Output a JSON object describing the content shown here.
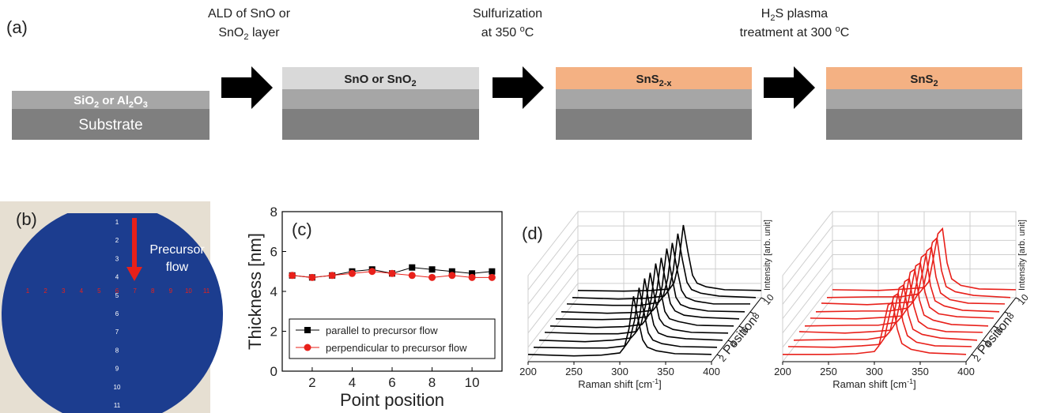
{
  "panel_a": {
    "label": "(a)",
    "steps": [
      {
        "line1": "ALD of SnO or",
        "line2": [
          "SnO",
          "2",
          " layer"
        ]
      },
      {
        "line1": "Sulfurization",
        "line2": [
          "at 350 ",
          "o",
          "C"
        ]
      },
      {
        "line1": [
          "H",
          "2",
          "S plasma"
        ],
        "line2": [
          "treatment at 300 ",
          "o",
          "C"
        ]
      }
    ],
    "insulator": [
      "SiO",
      "2",
      " or Al",
      "2",
      "O",
      "3"
    ],
    "substrate": "Substrate",
    "films": [
      [
        "SnO or SnO",
        "2"
      ],
      [
        "SnS",
        "2-x"
      ],
      [
        "SnS",
        "2"
      ]
    ]
  },
  "panel_b": {
    "label": "(b)",
    "annotation": [
      "Precursor",
      "flow"
    ],
    "vertical_labels": [
      "1",
      "2",
      "3",
      "4",
      "5",
      "6",
      "7",
      "8",
      "9",
      "10",
      "11"
    ],
    "horizontal_labels": [
      "1",
      "2",
      "3",
      "4",
      "5",
      "6",
      "7",
      "8",
      "9",
      "10",
      "11"
    ]
  },
  "chart_data": [
    {
      "type": "line",
      "panel_label": "(c)",
      "xlabel": "Point position",
      "ylabel": "Thickness [nm]",
      "x": [
        1,
        2,
        3,
        4,
        5,
        6,
        7,
        8,
        9,
        10,
        11
      ],
      "series": [
        {
          "name": "parallel to precursor flow",
          "color": "#000000",
          "marker": "square",
          "values": [
            4.8,
            4.7,
            4.8,
            5.0,
            5.1,
            4.9,
            5.2,
            5.1,
            5.0,
            4.9,
            5.0
          ]
        },
        {
          "name": "perpendicular to precursor flow",
          "color": "#e8201a",
          "marker": "circle",
          "values": [
            4.8,
            4.7,
            4.8,
            4.9,
            5.0,
            4.9,
            4.8,
            4.7,
            4.8,
            4.7,
            4.7
          ]
        }
      ],
      "xlim": [
        0.5,
        11.5
      ],
      "xticks": [
        2,
        4,
        6,
        8,
        10
      ],
      "ylim": [
        0,
        8
      ],
      "yticks": [
        0,
        2,
        4,
        6,
        8
      ],
      "legend": "lower center"
    },
    {
      "type": "waterfall",
      "panel_label": "(d)",
      "color": "#000000",
      "xlabel": [
        "Raman shift [cm",
        "-1",
        "]"
      ],
      "ylabel": "Intensity [arb. unit]",
      "zlabel": "Position",
      "x": [
        200,
        250,
        280,
        300,
        305,
        310,
        315,
        320,
        325,
        330,
        340,
        360,
        400
      ],
      "z": [
        1,
        2,
        3,
        4,
        5,
        6,
        7,
        8,
        9,
        10
      ],
      "series": [
        {
          "values": [
            0.1,
            0.08,
            0.09,
            0.12,
            0.2,
            0.45,
            0.9,
            0.58,
            0.3,
            0.2,
            0.15,
            0.11,
            0.1
          ]
        },
        {
          "values": [
            0.1,
            0.09,
            0.09,
            0.12,
            0.21,
            0.47,
            0.92,
            0.6,
            0.3,
            0.2,
            0.15,
            0.11,
            0.1
          ]
        },
        {
          "values": [
            0.1,
            0.08,
            0.1,
            0.13,
            0.2,
            0.46,
            0.95,
            0.6,
            0.31,
            0.2,
            0.15,
            0.12,
            0.1
          ]
        },
        {
          "values": [
            0.11,
            0.09,
            0.09,
            0.12,
            0.22,
            0.48,
            0.93,
            0.59,
            0.3,
            0.21,
            0.15,
            0.11,
            0.1
          ]
        },
        {
          "values": [
            0.1,
            0.08,
            0.09,
            0.12,
            0.2,
            0.46,
            0.96,
            0.61,
            0.3,
            0.2,
            0.16,
            0.11,
            0.1
          ]
        },
        {
          "values": [
            0.1,
            0.09,
            0.1,
            0.13,
            0.21,
            0.47,
            0.94,
            0.6,
            0.31,
            0.21,
            0.15,
            0.12,
            0.1
          ]
        },
        {
          "values": [
            0.1,
            0.08,
            0.09,
            0.12,
            0.2,
            0.45,
            0.97,
            0.62,
            0.3,
            0.2,
            0.15,
            0.11,
            0.1
          ]
        },
        {
          "values": [
            0.11,
            0.09,
            0.09,
            0.13,
            0.21,
            0.46,
            0.95,
            0.6,
            0.3,
            0.2,
            0.15,
            0.11,
            0.11
          ]
        },
        {
          "values": [
            0.1,
            0.08,
            0.09,
            0.12,
            0.2,
            0.47,
            0.98,
            0.62,
            0.31,
            0.21,
            0.16,
            0.12,
            0.1
          ]
        },
        {
          "values": [
            0.1,
            0.09,
            0.1,
            0.12,
            0.21,
            0.48,
            1.0,
            0.63,
            0.31,
            0.2,
            0.15,
            0.11,
            0.1
          ]
        }
      ],
      "xlim": [
        200,
        400
      ],
      "xticks": [
        200,
        250,
        300,
        350,
        400
      ],
      "ylim": [
        0,
        1
      ],
      "zlim": [
        1,
        10
      ],
      "zticks": [
        2,
        4,
        6,
        8,
        10
      ]
    },
    {
      "type": "waterfall",
      "color": "#e8201a",
      "xlabel": [
        "Raman shift [cm",
        "-1",
        "]"
      ],
      "ylabel": "Intensity [arb. unit]",
      "zlabel": "Position",
      "x": [
        200,
        250,
        280,
        300,
        305,
        310,
        315,
        320,
        325,
        330,
        340,
        360,
        400
      ],
      "z": [
        1,
        2,
        3,
        4,
        5,
        6,
        7,
        8,
        9,
        10
      ],
      "series": [
        {
          "values": [
            0.1,
            0.1,
            0.11,
            0.14,
            0.22,
            0.5,
            0.78,
            0.82,
            0.45,
            0.25,
            0.17,
            0.12,
            0.1
          ]
        },
        {
          "values": [
            0.11,
            0.1,
            0.12,
            0.14,
            0.23,
            0.52,
            0.8,
            0.84,
            0.46,
            0.26,
            0.17,
            0.12,
            0.11
          ]
        },
        {
          "values": [
            0.1,
            0.11,
            0.11,
            0.15,
            0.22,
            0.5,
            0.82,
            0.86,
            0.45,
            0.25,
            0.18,
            0.13,
            0.1
          ]
        },
        {
          "values": [
            0.12,
            0.1,
            0.12,
            0.14,
            0.24,
            0.53,
            0.81,
            0.85,
            0.47,
            0.26,
            0.17,
            0.12,
            0.11
          ]
        },
        {
          "values": [
            0.1,
            0.11,
            0.11,
            0.15,
            0.22,
            0.51,
            0.84,
            0.88,
            0.46,
            0.25,
            0.18,
            0.12,
            0.1
          ]
        },
        {
          "values": [
            0.11,
            0.1,
            0.12,
            0.14,
            0.23,
            0.52,
            0.83,
            0.87,
            0.47,
            0.26,
            0.17,
            0.13,
            0.11
          ]
        },
        {
          "values": [
            0.1,
            0.11,
            0.11,
            0.15,
            0.22,
            0.5,
            0.85,
            0.9,
            0.46,
            0.25,
            0.18,
            0.12,
            0.1
          ]
        },
        {
          "values": [
            0.12,
            0.1,
            0.12,
            0.14,
            0.24,
            0.53,
            0.84,
            0.89,
            0.48,
            0.26,
            0.17,
            0.12,
            0.11
          ]
        },
        {
          "values": [
            0.1,
            0.11,
            0.11,
            0.15,
            0.23,
            0.52,
            0.86,
            0.92,
            0.47,
            0.25,
            0.18,
            0.13,
            0.1
          ]
        },
        {
          "values": [
            0.11,
            0.1,
            0.12,
            0.14,
            0.22,
            0.54,
            0.88,
            0.95,
            0.48,
            0.26,
            0.17,
            0.12,
            0.11
          ]
        }
      ],
      "xlim": [
        200,
        400
      ],
      "xticks": [
        200,
        250,
        300,
        350,
        400
      ],
      "ylim": [
        0,
        1
      ],
      "zlim": [
        1,
        10
      ],
      "zticks": [
        2,
        4,
        6,
        8,
        10
      ]
    }
  ]
}
